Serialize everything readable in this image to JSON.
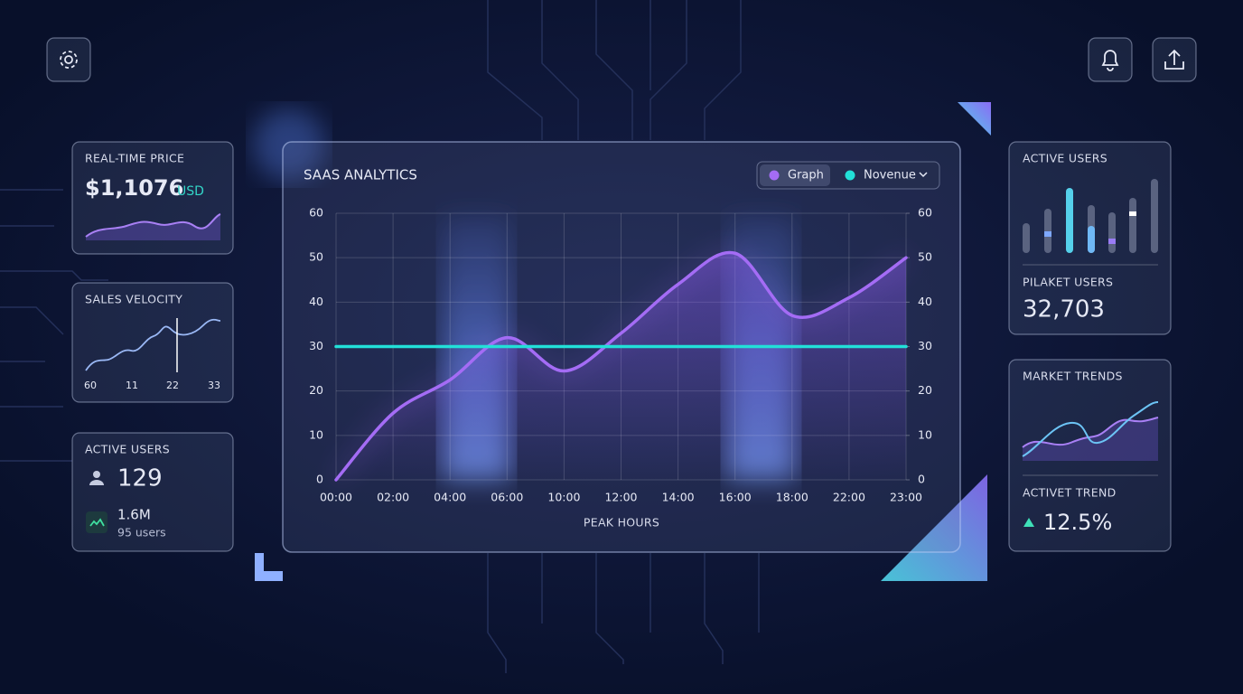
{
  "cards": {
    "price": {
      "title": "REAL-TIME PRICE",
      "value": "$1,1076",
      "unit": "USD"
    },
    "sales_velocity": {
      "title": "SALES VELOCITY",
      "labels": [
        "60",
        "11",
        "22",
        "33"
      ]
    },
    "active_users": {
      "title": "ACTIVE USERS",
      "value": "129",
      "sub_value": "1.6M",
      "sub_label": "95 users"
    },
    "active_users_right": {
      "title": "ACTIVE USERS",
      "metric_label": "PILAKET USERS",
      "metric_value": "32,703"
    },
    "market_trends": {
      "title": "MARKET TRENDS",
      "trend_label": "ACTIVET TREND",
      "trend_value": "12.5%"
    }
  },
  "main_chart": {
    "type": "line",
    "title": "SAAS ANALYTICS",
    "x_label": "PEAK HOURS",
    "categories": [
      "00:00",
      "02:00",
      "04:00",
      "06:00",
      "10:00",
      "12:00",
      "14:00",
      "16:00",
      "18:00",
      "22:00",
      "23:00"
    ],
    "series": [
      {
        "name": "Graph",
        "color": "#a46cf5",
        "values": [
          0,
          15,
          22.5,
          32,
          24.5,
          33,
          44,
          51,
          37,
          41,
          50
        ]
      },
      {
        "name": "Novenue",
        "color": "#22e0d8",
        "values": [
          30,
          30,
          30,
          30,
          30,
          30,
          30,
          30,
          30,
          30,
          30
        ]
      }
    ],
    "ylim": [
      0,
      60
    ],
    "yticks": [
      0,
      10,
      20,
      30,
      40,
      50,
      60
    ],
    "y2lim": [
      0,
      60
    ],
    "y2ticks": [
      0,
      10,
      20,
      30,
      40,
      50,
      60
    ],
    "grid": true
  }
}
